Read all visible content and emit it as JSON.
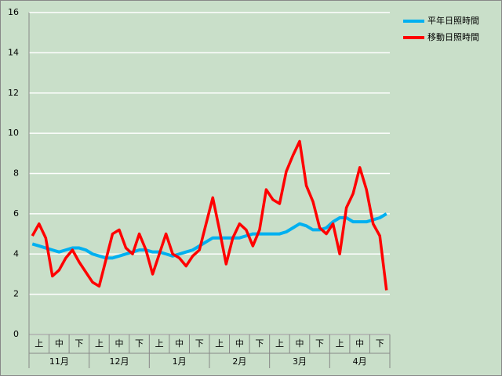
{
  "chart_data": {
    "type": "line",
    "categories": [
      null,
      "上",
      null,
      null,
      "中",
      null,
      null,
      "下",
      null,
      null,
      "上",
      null,
      null,
      "中",
      null,
      null,
      "下",
      null,
      null,
      "上",
      null,
      null,
      "中",
      null,
      null,
      "下",
      null,
      null,
      "上",
      null,
      null,
      "中",
      null,
      null,
      "下",
      null,
      null,
      "上",
      null,
      null,
      "中",
      null,
      null,
      "下",
      null,
      null,
      "上",
      null,
      null,
      "中",
      null,
      null,
      "下",
      null
    ],
    "month_labels": [
      "11月",
      "12月",
      "1月",
      "2月",
      "3月",
      "4月"
    ],
    "series": [
      {
        "name": "平年日照時間",
        "color": "#00b0f0",
        "values": [
          4.5,
          4.4,
          4.3,
          4.2,
          4.1,
          4.2,
          4.3,
          4.3,
          4.2,
          4.0,
          3.9,
          3.8,
          3.8,
          3.9,
          4.0,
          4.1,
          4.2,
          4.2,
          4.1,
          4.1,
          4.0,
          3.9,
          4.0,
          4.1,
          4.2,
          4.4,
          4.6,
          4.8,
          4.8,
          4.8,
          4.8,
          4.8,
          4.9,
          5.0,
          5.0,
          5.0,
          5.0,
          5.0,
          5.1,
          5.3,
          5.5,
          5.4,
          5.2,
          5.2,
          5.3,
          5.6,
          5.8,
          5.8,
          5.6,
          5.6,
          5.6,
          5.7,
          5.8,
          6.0
        ]
      },
      {
        "name": "移動日照時間",
        "color": "#ff0000",
        "values": [
          4.9,
          5.5,
          4.8,
          2.9,
          3.2,
          3.8,
          4.2,
          3.6,
          3.1,
          2.6,
          2.4,
          3.7,
          5.0,
          5.2,
          4.3,
          4.0,
          5.0,
          4.2,
          3.0,
          4.0,
          5.0,
          4.0,
          3.8,
          3.4,
          3.9,
          4.2,
          5.5,
          6.8,
          5.2,
          3.5,
          4.8,
          5.5,
          5.2,
          4.4,
          5.2,
          7.2,
          6.7,
          6.5,
          8.1,
          8.9,
          9.6,
          7.4,
          6.6,
          5.3,
          5.0,
          5.5,
          4.0,
          6.3,
          7.0,
          8.3,
          7.2,
          5.5,
          4.9,
          2.2
        ]
      }
    ],
    "ylim": [
      0,
      16
    ],
    "yticks": [
      0,
      2,
      4,
      6,
      8,
      10,
      12,
      14,
      16
    ],
    "grid": true,
    "legend": "top-right"
  }
}
